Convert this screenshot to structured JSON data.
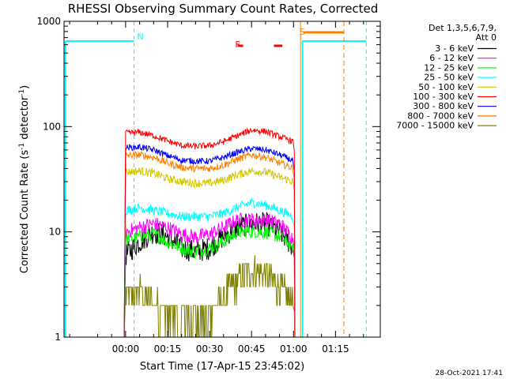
{
  "chart_data": {
    "type": "line",
    "title": "RHESSI Observing Summary Count Rates, Corrected",
    "xlabel": "Start Time (17-Apr-15 23:45:02)",
    "ylabel": "Corrected Count Rate (s",
    "ylabel_unit_sup": "-1",
    "ylabel_tail": " detector",
    "ylabel_tail_sup": "-1",
    "ylabel_close": ")",
    "yscale": "log",
    "ylim": [
      1,
      1000
    ],
    "xlim": [
      -22,
      91
    ],
    "xtick_labels": [
      "00:00",
      "00:15",
      "00:30",
      "00:45",
      "01:00",
      "01:15"
    ],
    "xtick_minutes": [
      0,
      15,
      30,
      45,
      60,
      75
    ],
    "ytick_labels": [
      "1",
      "10",
      "100",
      "1000"
    ],
    "yticks": [
      1,
      10,
      100,
      1000
    ],
    "legend_header": [
      "Det 1,3,5,6,7,9,",
      "Att 0"
    ],
    "legend_placement": "right",
    "series": [
      {
        "name": "3 - 6 keV",
        "color": "#000000"
      },
      {
        "name": "6 - 12 keV",
        "color": "#ff00ff"
      },
      {
        "name": "12 - 25 keV",
        "color": "#00ff00"
      },
      {
        "name": "25 - 50 keV",
        "color": "#00ffff"
      },
      {
        "name": "50 - 100 keV",
        "color": "#d4c800"
      },
      {
        "name": "100 - 300 keV",
        "color": "#ff0000"
      },
      {
        "name": "300 - 800 keV",
        "color": "#0000ff"
      },
      {
        "name": "800 - 7000 keV",
        "color": "#ff8000"
      },
      {
        "name": "7000 - 15000 keV",
        "color": "#808000"
      }
    ],
    "series_values": {
      "x": [
        0,
        5,
        10,
        15,
        20,
        25,
        30,
        35,
        40,
        45,
        50,
        55,
        60
      ],
      "100 - 300 keV": [
        87,
        88,
        82,
        73,
        66,
        65,
        66,
        72,
        82,
        93,
        90,
        80,
        72
      ],
      "300 - 800 keV": [
        63,
        64,
        60,
        53,
        48,
        47,
        47,
        51,
        57,
        62,
        60,
        54,
        47
      ],
      "800 - 7000 keV": [
        53,
        54,
        51,
        45,
        41,
        40,
        40,
        43,
        49,
        54,
        51,
        45,
        40
      ],
      "50 - 100 keV": [
        37,
        38,
        36,
        32,
        30,
        29,
        29,
        31,
        35,
        38,
        37,
        33,
        30
      ],
      "25 - 50 keV": [
        16,
        17,
        16,
        15,
        14,
        14,
        14,
        15,
        17,
        19,
        18,
        16,
        14
      ],
      "6 - 12 keV": [
        10,
        11,
        12,
        11,
        9.5,
        9,
        9.5,
        11,
        13,
        13,
        13,
        12,
        8.5
      ],
      "3 - 6 keV": [
        6,
        8,
        10,
        9,
        7,
        6.5,
        7,
        9,
        11,
        12,
        12,
        10,
        7
      ],
      "12 - 25 keV": [
        8.5,
        9,
        9.5,
        8,
        7,
        6.5,
        7,
        8,
        10,
        10,
        10,
        9,
        7
      ],
      "7000 - 15000 keV": [
        2.5,
        2.8,
        2.2,
        1.7,
        1.5,
        1.5,
        1.6,
        2.5,
        3.5,
        4.5,
        4,
        3,
        2.2
      ]
    },
    "pre_level": 650,
    "post_level": 650,
    "annotations": [
      {
        "text": "N",
        "color": "#00ffff",
        "x_minutes": 3
      },
      {
        "text": "F",
        "color": "#ff0000",
        "x_minutes": 38
      },
      {
        "text": "S",
        "color": "#ff8000",
        "x_minutes": 61
      }
    ],
    "flare_bars_minutes": [
      [
        40,
        42
      ],
      [
        53,
        56
      ]
    ],
    "saa_bar_minutes": [
      63.5,
      78
    ],
    "night_lines_minutes": [
      -21,
      3,
      63,
      86
    ],
    "orange_solid_minutes": 62.5,
    "orange_dashed_minutes": 78
  },
  "footer": {
    "timestamp": "28-Oct-2021 17:41"
  }
}
